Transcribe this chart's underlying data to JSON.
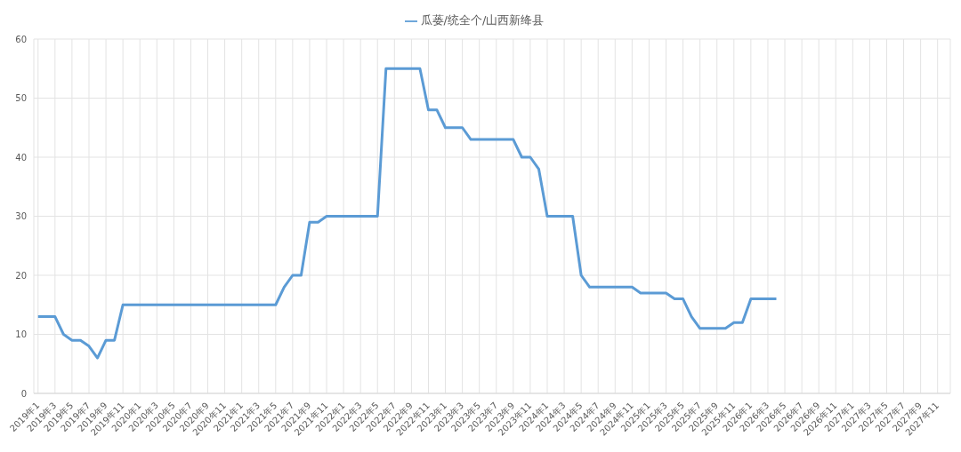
{
  "chart_data": {
    "type": "line",
    "categories": [
      "2019年1",
      null,
      "2019年3",
      null,
      "2019年5",
      null,
      "2019年7",
      null,
      "2019年9",
      null,
      "2019年11",
      null,
      "2020年1",
      null,
      "2020年3",
      null,
      "2020年5",
      null,
      "2020年7",
      null,
      "2020年9",
      null,
      "2020年11",
      null,
      "2021年1",
      null,
      "2021年3",
      null,
      "2021年5",
      null,
      "2021年7",
      null,
      "2021年9",
      null,
      "2021年11",
      null,
      "2022年1",
      null,
      "2022年3",
      null,
      "2022年5",
      null,
      "2022年7",
      null,
      "2022年9",
      null,
      "2022年11",
      null,
      "2023年1",
      null,
      "2023年3",
      null,
      "2023年5",
      null,
      "2023年7",
      null,
      "2023年9",
      null,
      "2023年11",
      null,
      "2024年1",
      null,
      "2024年3",
      null,
      "2024年5",
      null,
      "2024年7",
      null,
      "2024年9",
      null,
      "2024年11",
      null,
      "2025年1",
      null,
      "2025年3",
      null,
      "2025年5",
      null,
      "2025年7",
      null,
      "2025年9",
      null,
      "2025年11",
      null,
      "2026年1",
      null,
      "2026年3",
      null,
      "2026年5",
      null,
      "2026年7",
      null,
      "2026年9",
      null,
      "2026年11",
      null,
      "2027年1",
      null,
      "2027年3",
      null,
      "2027年5",
      null,
      "2027年7",
      null,
      "2027年9",
      null,
      "2027年11",
      null
    ],
    "series": [
      {
        "name": "瓜蒌/统全个/山西新绛县",
        "color": "#5b9bd5",
        "values": [
          13,
          13,
          13,
          10,
          9,
          9,
          8,
          6,
          9,
          9,
          15,
          15,
          15,
          15,
          15,
          15,
          15,
          15,
          15,
          15,
          15,
          15,
          15,
          15,
          15,
          15,
          15,
          15,
          15,
          18,
          20,
          20,
          29,
          29,
          30,
          30,
          30,
          30,
          30,
          30,
          30,
          55,
          55,
          55,
          55,
          55,
          48,
          48,
          45,
          45,
          45,
          43,
          43,
          43,
          43,
          43,
          43,
          40,
          40,
          38,
          30,
          30,
          30,
          30,
          20,
          18,
          18,
          18,
          18,
          18,
          18,
          17,
          17,
          17,
          17,
          16,
          16,
          13,
          11,
          11,
          11,
          11,
          12,
          12,
          16,
          16,
          16,
          16,
          null,
          null,
          null,
          null,
          null,
          null,
          null,
          null,
          null,
          null,
          null,
          null,
          null,
          null,
          null,
          null,
          null,
          null,
          null,
          null
        ]
      }
    ],
    "ylim": [
      0,
      60
    ],
    "yticks": [
      0,
      10,
      20,
      30,
      40,
      50,
      60
    ],
    "grid": true,
    "legend": "top",
    "marker": "none",
    "line_style": "solid"
  }
}
